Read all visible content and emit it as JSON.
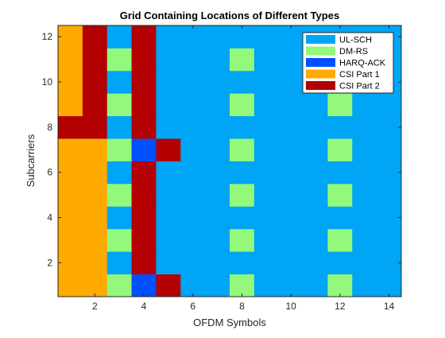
{
  "chart_data": {
    "type": "heatmap",
    "title": "Grid Containing Locations of Different Types",
    "xlabel": "OFDM Symbols",
    "ylabel": "Subcarriers",
    "xlim": [
      0.5,
      14.5
    ],
    "ylim": [
      0.5,
      12.5
    ],
    "xticks": [
      2,
      4,
      6,
      8,
      10,
      12,
      14
    ],
    "yticks": [
      2,
      4,
      6,
      8,
      10,
      12
    ],
    "legend_position": "top-right",
    "grid": false,
    "legend": [
      {
        "label": "UL-SCH",
        "color": "#00a5f5"
      },
      {
        "label": "DM-RS",
        "color": "#94f87a"
      },
      {
        "label": "HARQ-ACK",
        "color": "#0050ff"
      },
      {
        "label": "CSI Part 1",
        "color": "#ffaa00"
      },
      {
        "label": "CSI Part 2",
        "color": "#b30000"
      }
    ],
    "categories": [
      "UL-SCH",
      "DM-RS",
      "HARQ-ACK",
      "CSI Part 1",
      "CSI Part 2"
    ],
    "columns": [
      1,
      2,
      3,
      4,
      5,
      6,
      7,
      8,
      9,
      10,
      11,
      12,
      13,
      14
    ],
    "rows_bottom_to_top": [
      1,
      2,
      3,
      4,
      5,
      6,
      7,
      8,
      9,
      10,
      11,
      12
    ],
    "grid_values": [
      [
        "CSI Part 1",
        "CSI Part 1",
        "DM-RS",
        "HARQ-ACK",
        "CSI Part 2",
        "UL-SCH",
        "UL-SCH",
        "DM-RS",
        "UL-SCH",
        "UL-SCH",
        "UL-SCH",
        "DM-RS",
        "UL-SCH",
        "UL-SCH"
      ],
      [
        "CSI Part 1",
        "CSI Part 1",
        "UL-SCH",
        "CSI Part 2",
        "UL-SCH",
        "UL-SCH",
        "UL-SCH",
        "UL-SCH",
        "UL-SCH",
        "UL-SCH",
        "UL-SCH",
        "UL-SCH",
        "UL-SCH",
        "UL-SCH"
      ],
      [
        "CSI Part 1",
        "CSI Part 1",
        "DM-RS",
        "CSI Part 2",
        "UL-SCH",
        "UL-SCH",
        "UL-SCH",
        "DM-RS",
        "UL-SCH",
        "UL-SCH",
        "UL-SCH",
        "DM-RS",
        "UL-SCH",
        "UL-SCH"
      ],
      [
        "CSI Part 1",
        "CSI Part 1",
        "UL-SCH",
        "CSI Part 2",
        "UL-SCH",
        "UL-SCH",
        "UL-SCH",
        "UL-SCH",
        "UL-SCH",
        "UL-SCH",
        "UL-SCH",
        "UL-SCH",
        "UL-SCH",
        "UL-SCH"
      ],
      [
        "CSI Part 1",
        "CSI Part 1",
        "DM-RS",
        "CSI Part 2",
        "UL-SCH",
        "UL-SCH",
        "UL-SCH",
        "DM-RS",
        "UL-SCH",
        "UL-SCH",
        "UL-SCH",
        "DM-RS",
        "UL-SCH",
        "UL-SCH"
      ],
      [
        "CSI Part 1",
        "CSI Part 1",
        "UL-SCH",
        "CSI Part 2",
        "UL-SCH",
        "UL-SCH",
        "UL-SCH",
        "UL-SCH",
        "UL-SCH",
        "UL-SCH",
        "UL-SCH",
        "UL-SCH",
        "UL-SCH",
        "UL-SCH"
      ],
      [
        "CSI Part 1",
        "CSI Part 1",
        "DM-RS",
        "HARQ-ACK",
        "CSI Part 2",
        "UL-SCH",
        "UL-SCH",
        "DM-RS",
        "UL-SCH",
        "UL-SCH",
        "UL-SCH",
        "DM-RS",
        "UL-SCH",
        "UL-SCH"
      ],
      [
        "CSI Part 2",
        "CSI Part 2",
        "UL-SCH",
        "CSI Part 2",
        "UL-SCH",
        "UL-SCH",
        "UL-SCH",
        "UL-SCH",
        "UL-SCH",
        "UL-SCH",
        "UL-SCH",
        "UL-SCH",
        "UL-SCH",
        "UL-SCH"
      ],
      [
        "CSI Part 1",
        "CSI Part 2",
        "DM-RS",
        "CSI Part 2",
        "UL-SCH",
        "UL-SCH",
        "UL-SCH",
        "DM-RS",
        "UL-SCH",
        "UL-SCH",
        "UL-SCH",
        "DM-RS",
        "UL-SCH",
        "UL-SCH"
      ],
      [
        "CSI Part 1",
        "CSI Part 2",
        "UL-SCH",
        "CSI Part 2",
        "UL-SCH",
        "UL-SCH",
        "UL-SCH",
        "UL-SCH",
        "UL-SCH",
        "UL-SCH",
        "UL-SCH",
        "UL-SCH",
        "UL-SCH",
        "UL-SCH"
      ],
      [
        "CSI Part 1",
        "CSI Part 2",
        "DM-RS",
        "CSI Part 2",
        "UL-SCH",
        "UL-SCH",
        "UL-SCH",
        "DM-RS",
        "UL-SCH",
        "UL-SCH",
        "UL-SCH",
        "UL-SCH",
        "UL-SCH",
        "UL-SCH"
      ],
      [
        "CSI Part 1",
        "CSI Part 2",
        "UL-SCH",
        "CSI Part 2",
        "UL-SCH",
        "UL-SCH",
        "UL-SCH",
        "UL-SCH",
        "UL-SCH",
        "UL-SCH",
        "UL-SCH",
        "UL-SCH",
        "UL-SCH",
        "UL-SCH"
      ]
    ]
  }
}
